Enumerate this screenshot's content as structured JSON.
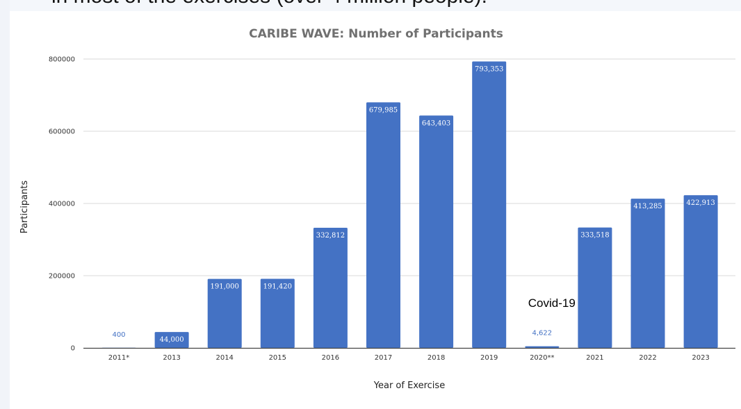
{
  "page": {
    "clipped_heading": "in most of the exercises (over 4 million people)."
  },
  "chart_data": {
    "type": "bar",
    "title": "CARIBE WAVE: Number of Participants",
    "xlabel": "Year of Exercise",
    "ylabel": "Participants",
    "categories": [
      "2011*",
      "2013",
      "2014",
      "2015",
      "2016",
      "2017",
      "2018",
      "2019",
      "2020**",
      "2021",
      "2022",
      "2023"
    ],
    "values": [
      400,
      44000,
      191000,
      191420,
      332812,
      679985,
      643403,
      793353,
      4622,
      333518,
      413285,
      422913
    ],
    "data_labels": [
      "400",
      "44,000",
      "191,000",
      "191,420",
      "332,812",
      "679,985",
      "643,403",
      "793,353",
      "4,622",
      "333,518",
      "413,285",
      "422,913"
    ],
    "ylim": [
      0,
      800000
    ],
    "yticks": [
      0,
      200000,
      400000,
      600000,
      800000
    ],
    "ytick_labels": [
      "0",
      "200000",
      "400000",
      "600000",
      "800000"
    ],
    "grid": true,
    "legend": "none",
    "bar_color": "#4472c4",
    "annotations": [
      {
        "text": "Covid-19",
        "category": "2020**",
        "y": 125000
      }
    ]
  }
}
